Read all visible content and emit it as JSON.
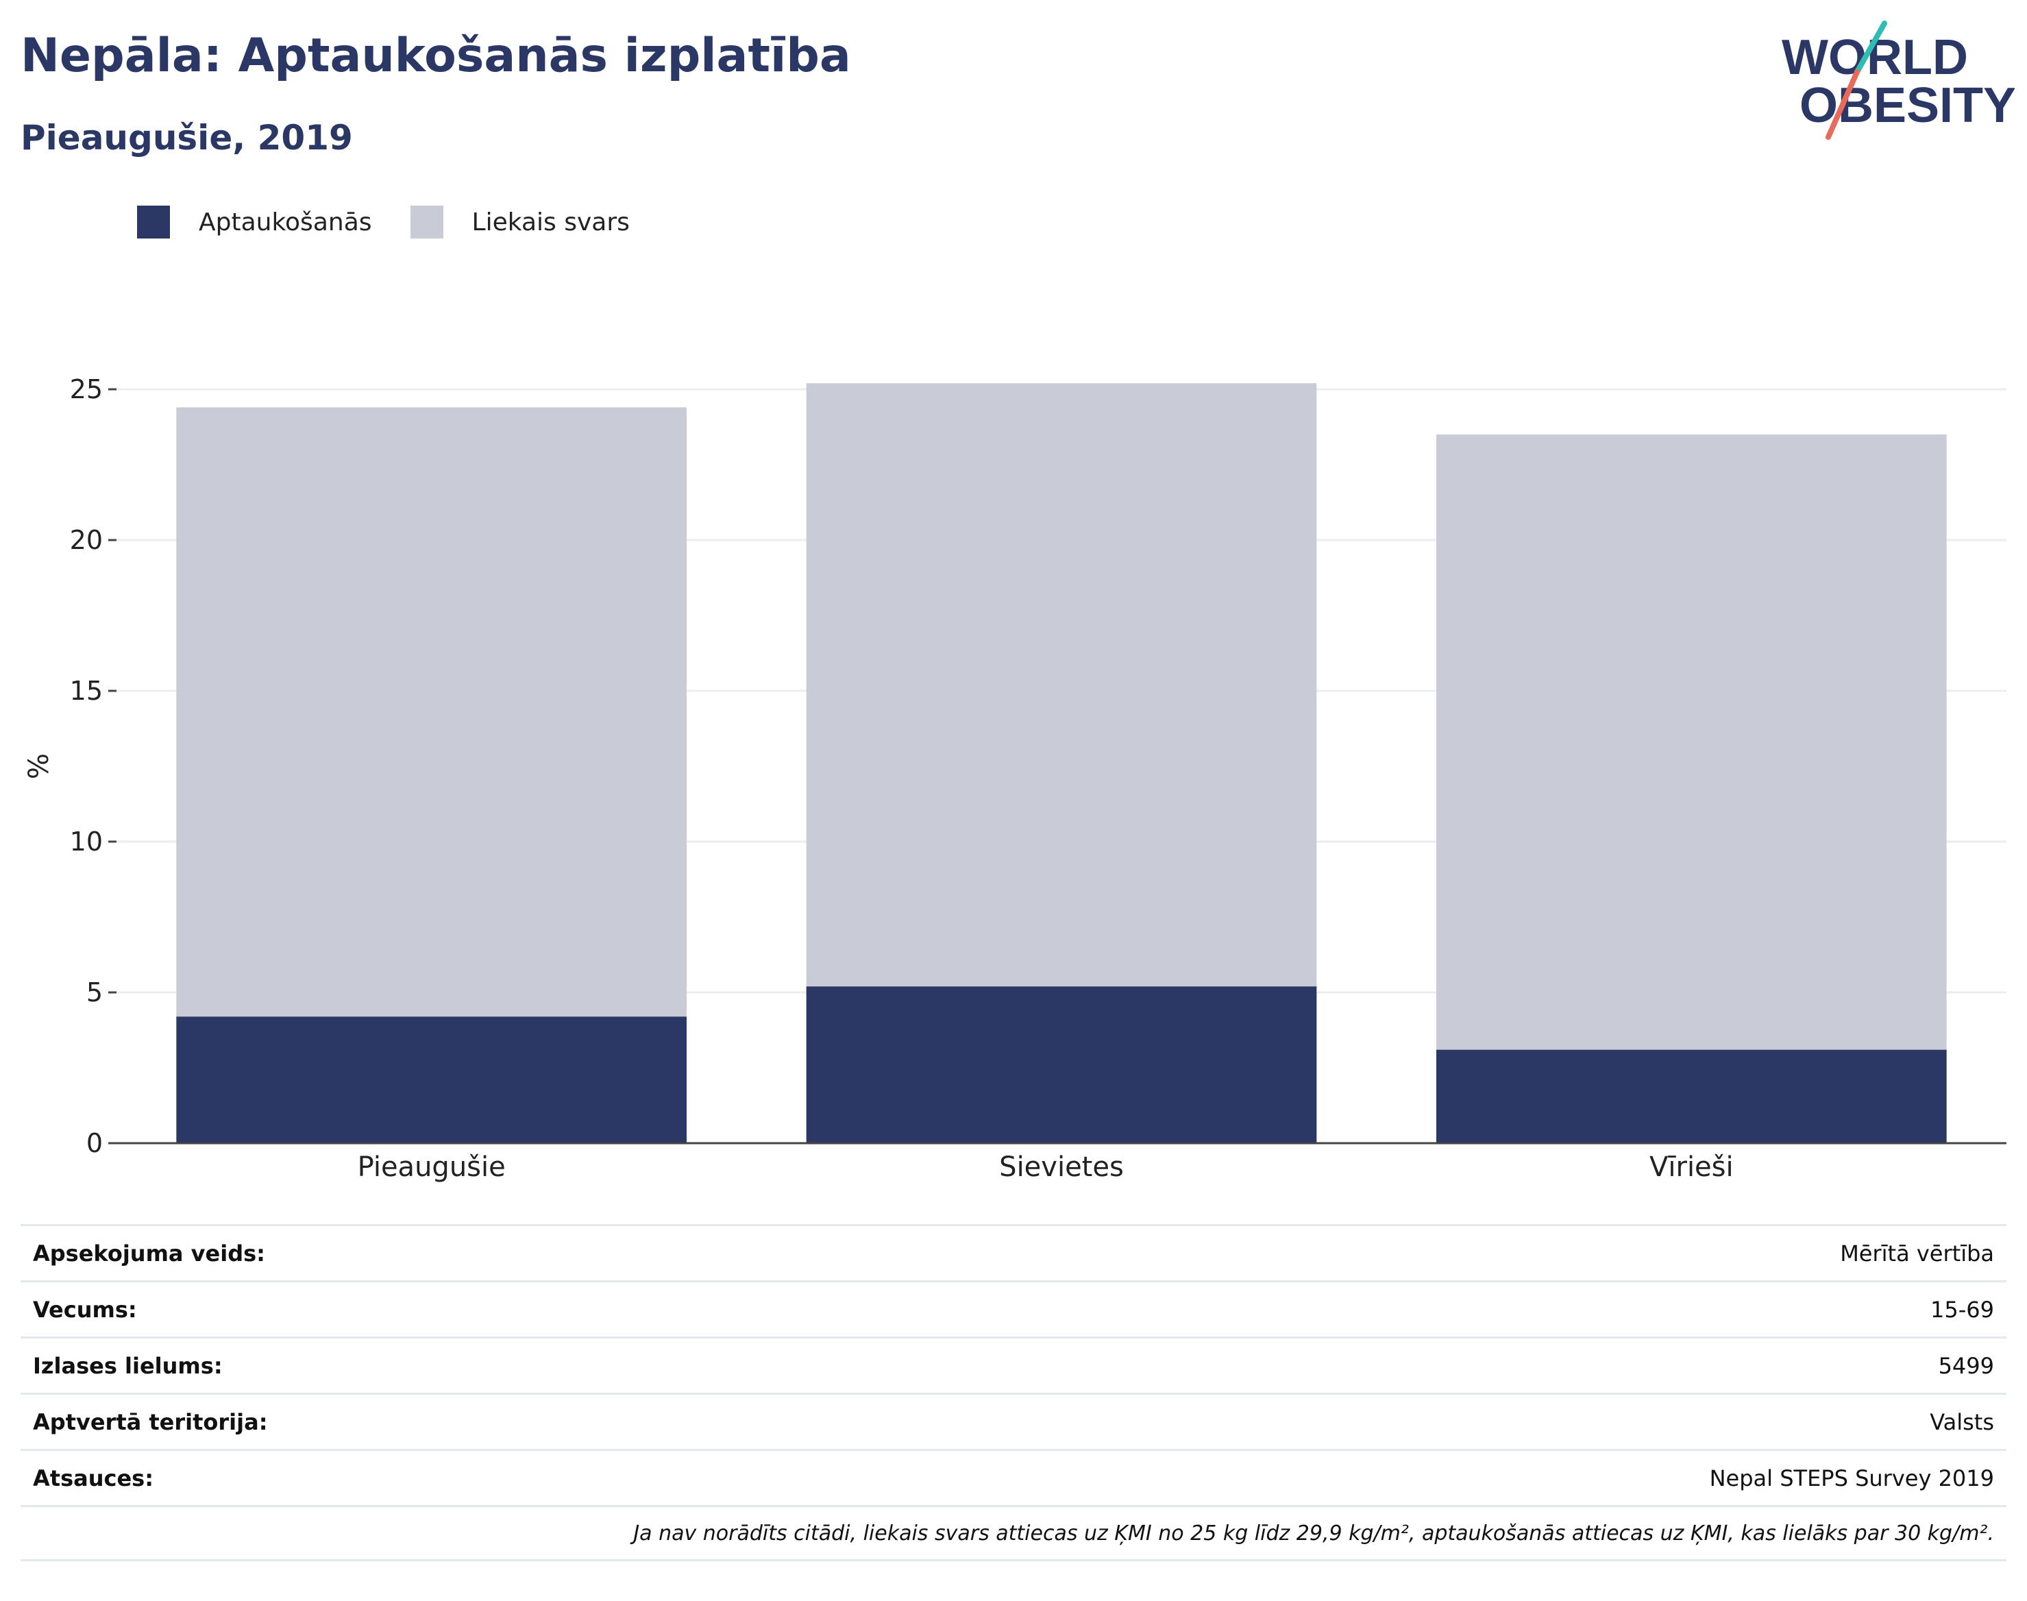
{
  "header": {
    "title": "Nepāla: Aptaukošanās izplatība",
    "subtitle": "Pieaugušie, 2019"
  },
  "logo": {
    "line1": "WORLD",
    "line2": "OBESITY"
  },
  "legend": [
    {
      "label": "Aptaukošanās",
      "color": "#2b3865"
    },
    {
      "label": "Liekais svars",
      "color": "#c9cbd7"
    }
  ],
  "chart_data": {
    "type": "bar",
    "stacked": true,
    "categories": [
      "Pieaugušie",
      "Sievietes",
      "Vīrieši"
    ],
    "series": [
      {
        "name": "Aptaukošanās",
        "color": "#2b3865",
        "values": [
          4.2,
          5.2,
          3.1
        ]
      },
      {
        "name": "Liekais svars",
        "color": "#c9cbd7",
        "values": [
          20.2,
          20.0,
          20.4
        ]
      }
    ],
    "ylabel": "%",
    "ylim": [
      0,
      25
    ],
    "yticks": [
      0,
      5,
      10,
      15,
      20,
      25
    ],
    "grid": true,
    "legend_position": "top-left"
  },
  "info": {
    "rows": [
      {
        "key": "Apsekojuma veids:",
        "value": "Mērītā vērtība"
      },
      {
        "key": "Vecums:",
        "value": "15-69"
      },
      {
        "key": "Izlases lielums:",
        "value": "5499"
      },
      {
        "key": "Aptvertā teritorija:",
        "value": "Valsts"
      },
      {
        "key": "Atsauces:",
        "value": "Nepal STEPS Survey 2019"
      }
    ],
    "note": "Ja nav norādīts citādi, liekais svars attiecas uz ĶMI no 25 kg līdz 29,9 kg/m², aptaukošanās attiecas uz ĶMI, kas lielāks par 30 kg/m²."
  }
}
